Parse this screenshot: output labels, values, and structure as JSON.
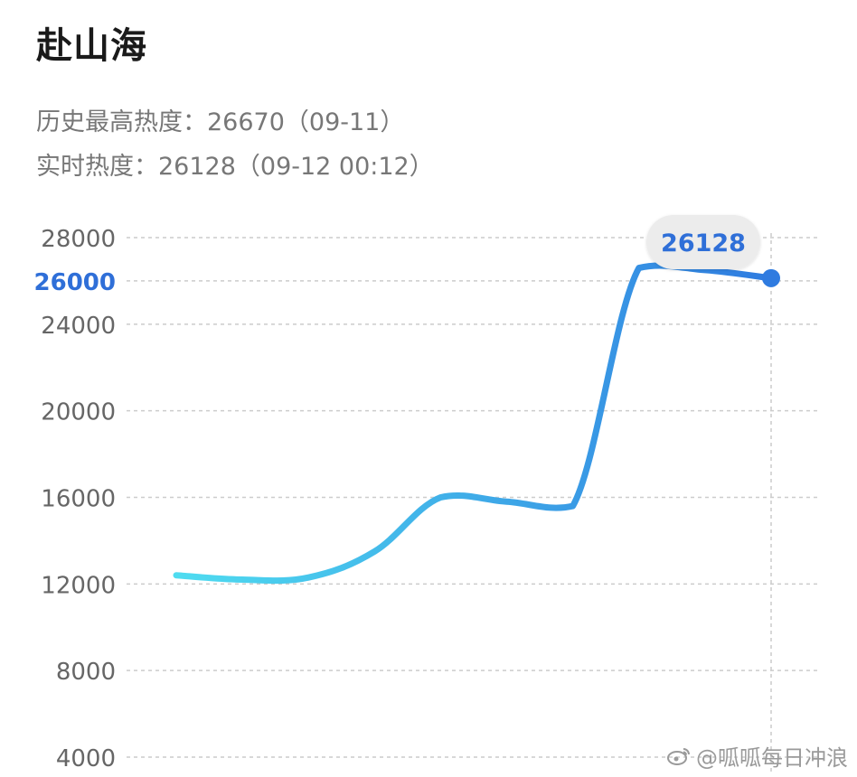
{
  "title": "赴山海",
  "stats": {
    "peak": "历史最高热度：26670（09-11）",
    "realtime": "实时热度：26128（09-12 00:12）"
  },
  "watermark": {
    "icon": "weibo-icon",
    "text": "@呱呱每日冲浪"
  },
  "colors": {
    "line_start": "#4fdcf0",
    "line_end": "#2f7be0",
    "highlight_tick": "#2f6fd8",
    "tick": "#666666",
    "grid": "#cccccc"
  },
  "chart_data": {
    "type": "line",
    "title": "",
    "xlabel": "",
    "ylabel": "",
    "ylim": [
      4000,
      28000
    ],
    "yticks": [
      "28000",
      "26000",
      "24000",
      "20000",
      "16000",
      "12000",
      "8000",
      "4000"
    ],
    "highlight_tick": "26000",
    "grid": "horizontal-dashed",
    "x": [
      0,
      1,
      2,
      3,
      4,
      5,
      6,
      7,
      8,
      9
    ],
    "series": [
      {
        "values": [
          12400,
          12200,
          12300,
          13500,
          16000,
          15800,
          15600,
          26600,
          26500,
          26128
        ]
      }
    ],
    "annotation": {
      "label": "26128",
      "value": 26128
    }
  }
}
